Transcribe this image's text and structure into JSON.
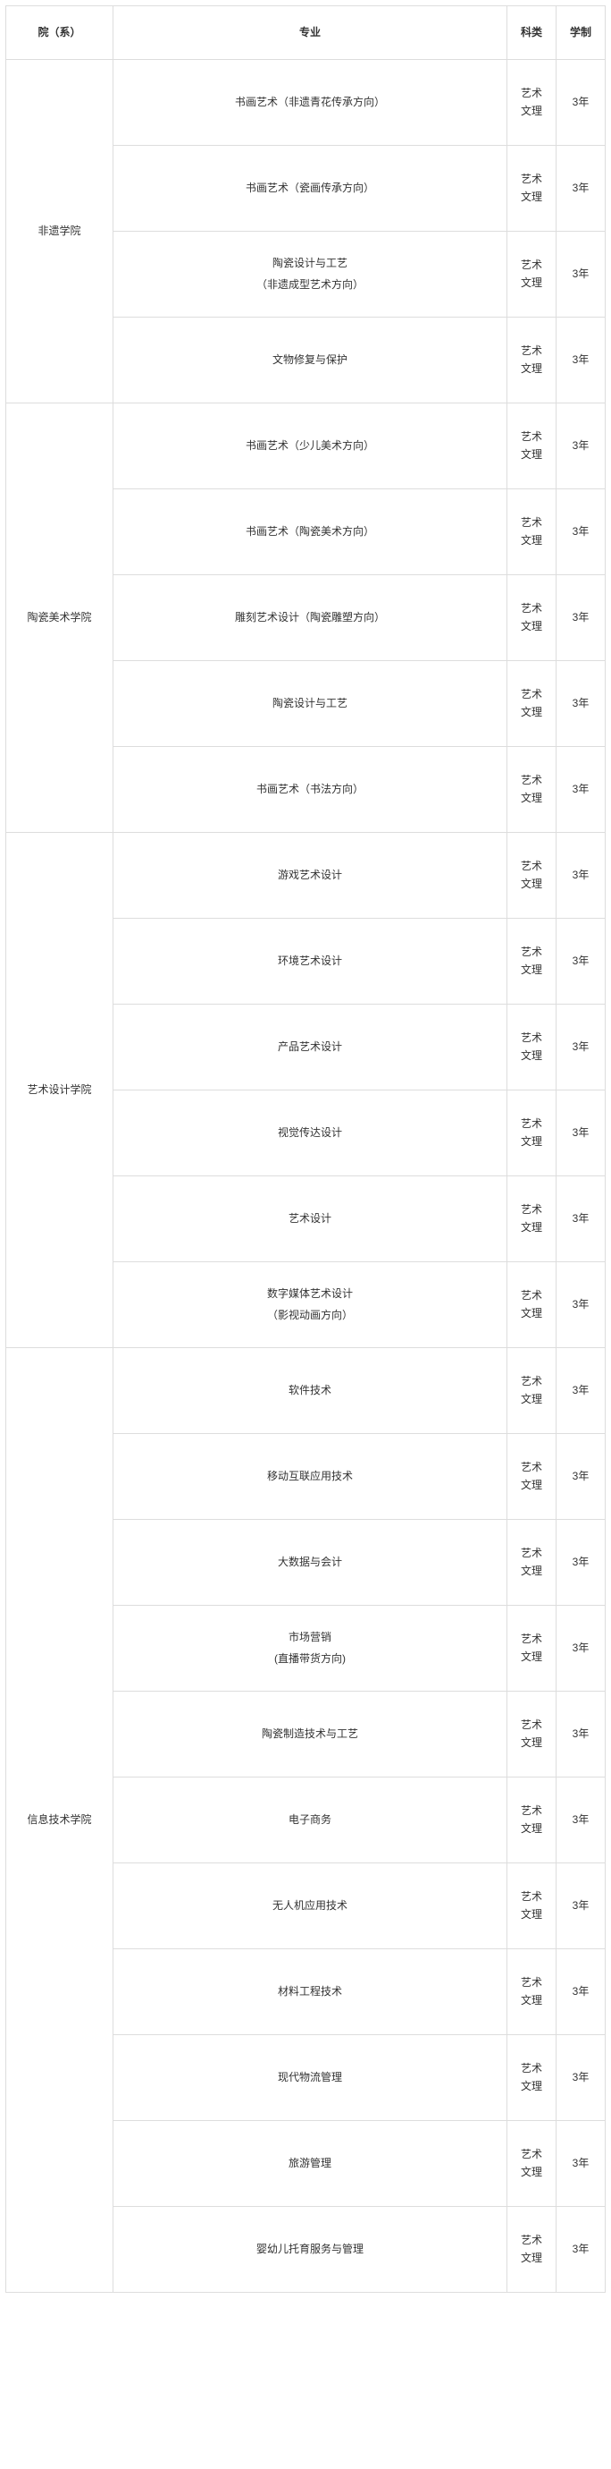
{
  "headers": {
    "dept": "院（系）",
    "major": "专业",
    "category": "科类",
    "duration": "学制"
  },
  "category_lines": [
    "艺术",
    "文理"
  ],
  "duration_value": "3年",
  "groups": [
    {
      "dept": "非遗学院",
      "majors": [
        {
          "lines": [
            "书画艺术（非遗青花传承方向）"
          ]
        },
        {
          "lines": [
            "书画艺术（瓷画传承方向）"
          ]
        },
        {
          "lines": [
            "陶瓷设计与工艺",
            "（非遗成型艺术方向）"
          ]
        },
        {
          "lines": [
            "文物修复与保护"
          ]
        }
      ]
    },
    {
      "dept": "陶瓷美术学院",
      "majors": [
        {
          "lines": [
            "书画艺术（少儿美术方向）"
          ]
        },
        {
          "lines": [
            "书画艺术（陶瓷美术方向）"
          ]
        },
        {
          "lines": [
            "雕刻艺术设计（陶瓷雕塑方向）"
          ]
        },
        {
          "lines": [
            "陶瓷设计与工艺"
          ]
        },
        {
          "lines": [
            "书画艺术（书法方向）"
          ]
        }
      ]
    },
    {
      "dept": "艺术设计学院",
      "majors": [
        {
          "lines": [
            "游戏艺术设计"
          ]
        },
        {
          "lines": [
            "环境艺术设计"
          ]
        },
        {
          "lines": [
            "产品艺术设计"
          ]
        },
        {
          "lines": [
            "视觉传达设计"
          ]
        },
        {
          "lines": [
            "艺术设计"
          ]
        },
        {
          "lines": [
            "数字媒体艺术设计",
            "（影视动画方向）"
          ]
        }
      ]
    },
    {
      "dept": "信息技术学院",
      "majors": [
        {
          "lines": [
            "软件技术"
          ]
        },
        {
          "lines": [
            "移动互联应用技术"
          ]
        },
        {
          "lines": [
            "大数据与会计"
          ]
        },
        {
          "lines": [
            "市场营销",
            "(直播带货方向)"
          ]
        },
        {
          "lines": [
            "陶瓷制造技术与工艺"
          ]
        },
        {
          "lines": [
            "电子商务"
          ]
        },
        {
          "lines": [
            "无人机应用技术"
          ]
        },
        {
          "lines": [
            "材料工程技术"
          ]
        },
        {
          "lines": [
            "现代物流管理"
          ]
        },
        {
          "lines": [
            "旅游管理"
          ]
        },
        {
          "lines": [
            "婴幼儿托育服务与管理"
          ]
        }
      ]
    }
  ]
}
